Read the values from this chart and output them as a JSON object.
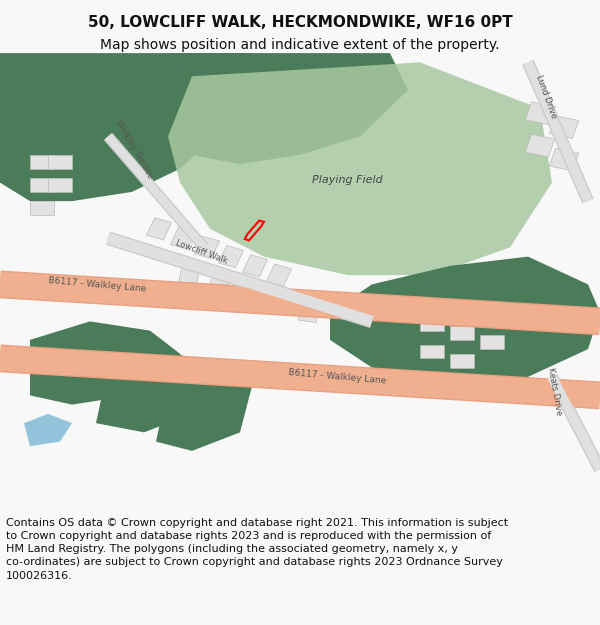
{
  "title_line1": "50, LOWCLIFF WALK, HECKMONDWIKE, WF16 0PT",
  "title_line2": "Map shows position and indicative extent of the property.",
  "footer_text": "Contains OS data © Crown copyright and database right 2021. This information is subject to Crown copyright and database rights 2023 and is reproduced with the permission of HM Land Registry. The polygons (including the associated geometry, namely x, y co-ordinates) are subject to Crown copyright and database rights 2023 Ordnance Survey 100026316.",
  "bg_color": "#f8f8f8",
  "map_bg": "#ffffff",
  "dark_green": "#4a7c59",
  "light_green": "#a8c8a0",
  "road_color": "#f0b090",
  "road_stroke": "#e8a080",
  "building_color": "#e8e8e8",
  "building_stroke": "#cccccc",
  "plot_color": "#ff0000",
  "water_color": "#7ab8d4",
  "text_color": "#333333",
  "road_label_color": "#555555",
  "title_fontsize": 11,
  "subtitle_fontsize": 10,
  "footer_fontsize": 8.5
}
